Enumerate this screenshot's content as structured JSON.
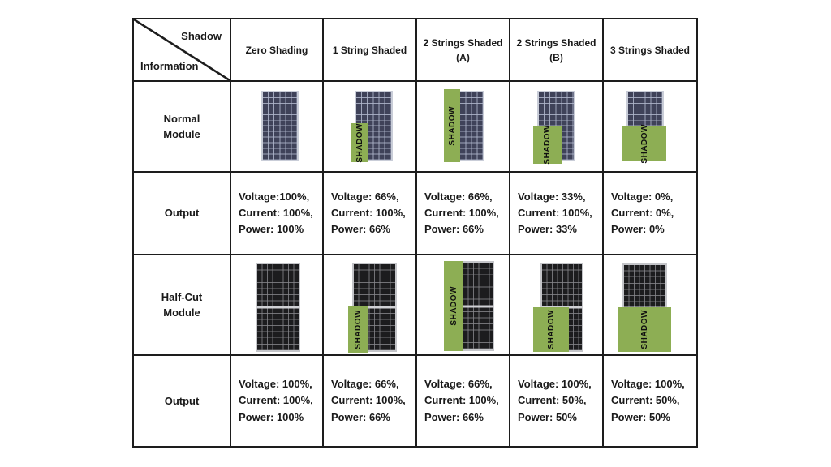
{
  "title_corner": {
    "top": "Shadow",
    "bottom": "Information"
  },
  "columns": [
    "Zero Shading",
    "1 String Shaded",
    "2 Strings Shaded\n(A)",
    "2 Strings Shaded\n(B)",
    "3 Strings Shaded"
  ],
  "row_labels": {
    "normal": "Normal\nModule",
    "output1": "Output",
    "halfcut": "Half-Cut\nModule",
    "output2": "Output"
  },
  "shadow_label": "SHADOW",
  "panels": {
    "normal": [
      {
        "module": "normal",
        "shading": "none"
      },
      {
        "module": "normal",
        "shading": "one"
      },
      {
        "module": "normal",
        "shading": "two_left"
      },
      {
        "module": "normal",
        "shading": "two_bottom"
      },
      {
        "module": "normal",
        "shading": "three"
      }
    ],
    "halfcut": [
      {
        "module": "halfcut",
        "shading": "none"
      },
      {
        "module": "halfcut",
        "shading": "one"
      },
      {
        "module": "halfcut",
        "shading": "two_left"
      },
      {
        "module": "halfcut",
        "shading": "two_bottom"
      },
      {
        "module": "halfcut",
        "shading": "three"
      }
    ]
  },
  "outputs": {
    "normal": [
      [
        "Voltage:100%,",
        "Current: 100%,",
        "Power: 100%"
      ],
      [
        "Voltage: 66%,",
        "Current: 100%,",
        "Power: 66%"
      ],
      [
        "Voltage: 66%,",
        "Current: 100%,",
        "Power: 66%"
      ],
      [
        "Voltage: 33%,",
        "Current: 100%,",
        "Power: 33%"
      ],
      [
        "Voltage: 0%,",
        "Current: 0%,",
        "Power: 0%"
      ]
    ],
    "halfcut": [
      [
        "Voltage: 100%,",
        "Current: 100%,",
        "Power: 100%"
      ],
      [
        "Voltage: 66%,",
        "Current: 100%,",
        "Power: 66%"
      ],
      [
        "Voltage: 66%,",
        "Current: 100%,",
        "Power: 66%"
      ],
      [
        "Voltage: 100%,",
        "Current: 50%,",
        "Power: 50%"
      ],
      [
        "Voltage: 100%,",
        "Current: 50%,",
        "Power: 50%"
      ]
    ]
  },
  "colors": {
    "shadow_green": "#8dae54",
    "normal_panel": "#3f4259",
    "normal_frame": "#c9cdd8",
    "halfcut_panel": "#1c1c1e",
    "halfcut_divider": "#cfd0d4",
    "table_border": "#1d1d1d",
    "text": "#1a1a1a"
  }
}
